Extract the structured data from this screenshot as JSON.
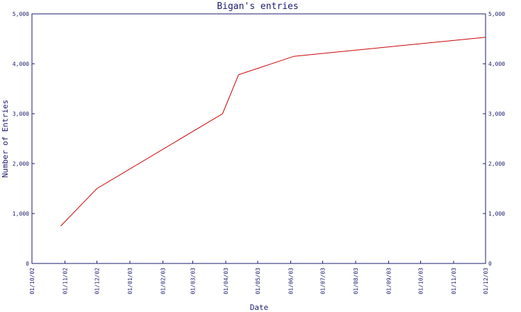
{
  "chart_data": {
    "type": "line",
    "title": "Bigan's entries",
    "xlabel": "Date",
    "ylabel": "Number of Entries",
    "x_tick_labels": [
      "01/10/02",
      "01/11/02",
      "01/12/02",
      "01/01/03",
      "01/02/03",
      "01/03/03",
      "01/04/03",
      "01/05/03",
      "01/06/03",
      "01/07/03",
      "01/08/03",
      "01/09/03",
      "01/10/03",
      "01/11/03",
      "01/12/03"
    ],
    "y_ticks": [
      0,
      1000,
      2000,
      3000,
      4000,
      5000
    ],
    "y_tick_labels": [
      "0",
      "1,000",
      "2,000",
      "3,000",
      "4,000",
      "5,000"
    ],
    "ylim": [
      0,
      5000
    ],
    "xlim": [
      "2002-10-01",
      "2003-12-01"
    ],
    "grid": false,
    "colors": {
      "axis": "#1a1a6e",
      "line": "#cc0000"
    },
    "series": [
      {
        "x": [
          "2002-10-28",
          "2002-12-01",
          "2003-03-29",
          "2003-04-13",
          "2003-06-04",
          "2003-12-01"
        ],
        "values": [
          750,
          1500,
          3000,
          3780,
          4150,
          4530
        ]
      }
    ]
  }
}
